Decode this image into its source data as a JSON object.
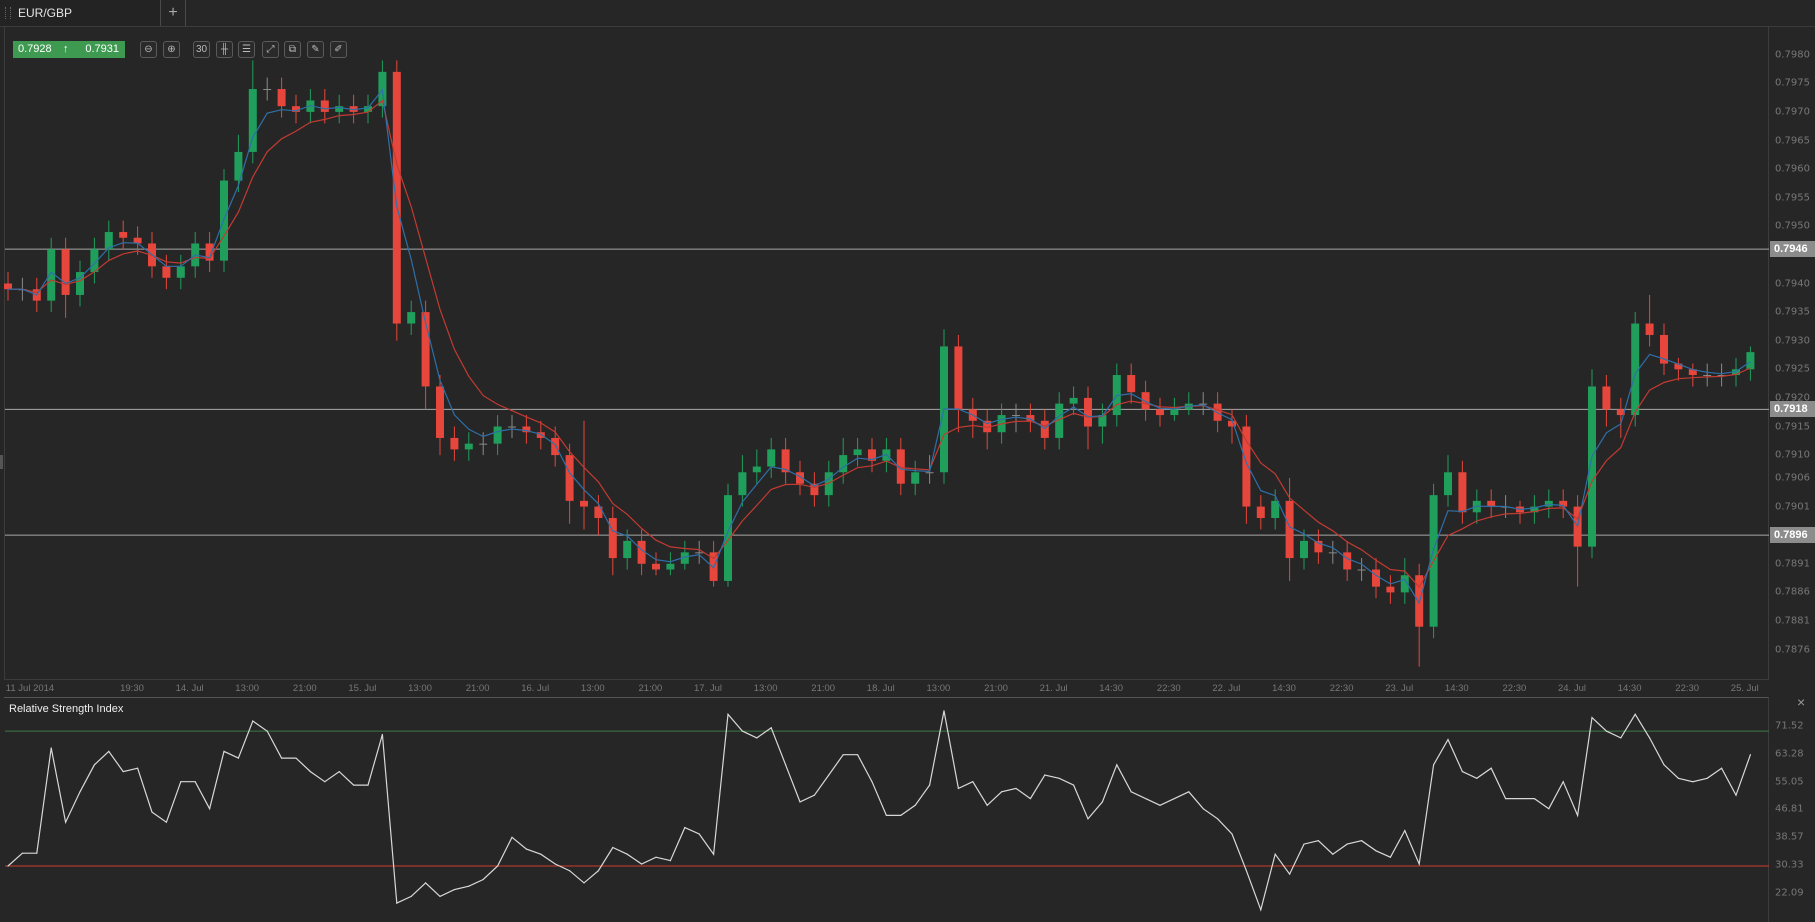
{
  "tab": {
    "label": "EUR/GBP",
    "add_label": "+"
  },
  "quote": {
    "bid": "0.7928",
    "ask": "0.7931",
    "direction_icon": "arrow-up-icon",
    "color": "#3f9a51"
  },
  "toolbar": [
    {
      "icon": "zoom-out-icon",
      "glyph": "⊖"
    },
    {
      "icon": "zoom-in-icon",
      "glyph": "⊕"
    },
    {
      "icon": "timeframe-icon",
      "glyph": "30"
    },
    {
      "icon": "chart-type-candles-icon",
      "glyph": "╫"
    },
    {
      "icon": "indicators-icon",
      "glyph": "☰"
    },
    {
      "icon": "autoscale-icon",
      "glyph": "⤢"
    },
    {
      "icon": "duplicate-icon",
      "glyph": "⧉"
    },
    {
      "icon": "edit-icon",
      "glyph": "✎"
    },
    {
      "icon": "draw-icon",
      "glyph": "✐"
    }
  ],
  "chart_data": [
    {
      "type": "candlestick",
      "symbol": "EUR/GBP",
      "ylim": [
        0.7871,
        0.7984
      ],
      "colors": {
        "up": "#1f9e5c",
        "down": "#e6463b",
        "neutral": "#8a8a8a",
        "ma_fast": "#2f6fa8",
        "ma_slow": "#c23b32"
      },
      "y_ticks": [
        "0.7980",
        "0.7975",
        "0.7970",
        "0.7965",
        "0.7960",
        "0.7955",
        "0.7950",
        "0.7940",
        "0.7935",
        "0.7930",
        "0.7925",
        "0.7920",
        "0.7915",
        "0.7910",
        "0.7906",
        "0.7901",
        "0.7891",
        "0.7886",
        "0.7881",
        "0.7876"
      ],
      "x_ticks": [
        "11 Jul 2014",
        "19:30",
        "14. Jul",
        "13:00",
        "21:00",
        "15. Jul",
        "13:00",
        "21:00",
        "16. Jul",
        "13:00",
        "21:00",
        "17. Jul",
        "13:00",
        "21:00",
        "18. Jul",
        "13:00",
        "21:00",
        "21. Jul",
        "14:30",
        "22:30",
        "22. Jul",
        "14:30",
        "22:30",
        "23. Jul",
        "14:30",
        "22:30",
        "24. Jul",
        "14:30",
        "22:30",
        "25. Jul"
      ],
      "horizontal_lines": [
        {
          "value": 0.7946,
          "label": "0.7946"
        },
        {
          "value": 0.7918,
          "label": "0.7918"
        },
        {
          "value": 0.7896,
          "label": "0.7896"
        }
      ],
      "candles_ohlc": [
        [
          0.794,
          0.7942,
          0.7937,
          0.7939
        ],
        [
          0.7939,
          0.7941,
          0.7937,
          0.7939
        ],
        [
          0.7939,
          0.7941,
          0.7935,
          0.7937
        ],
        [
          0.7937,
          0.7948,
          0.7935,
          0.7946
        ],
        [
          0.7946,
          0.7948,
          0.7934,
          0.7938
        ],
        [
          0.7938,
          0.7944,
          0.7936,
          0.7942
        ],
        [
          0.7942,
          0.7948,
          0.794,
          0.7946
        ],
        [
          0.7946,
          0.7951,
          0.7944,
          0.7949
        ],
        [
          0.7949,
          0.7951,
          0.7946,
          0.7948
        ],
        [
          0.7948,
          0.795,
          0.7945,
          0.7947
        ],
        [
          0.7947,
          0.7949,
          0.7941,
          0.7943
        ],
        [
          0.7943,
          0.7945,
          0.7939,
          0.7941
        ],
        [
          0.7941,
          0.7945,
          0.7939,
          0.7943
        ],
        [
          0.7943,
          0.7949,
          0.7941,
          0.7947
        ],
        [
          0.7947,
          0.7949,
          0.7942,
          0.7944
        ],
        [
          0.7944,
          0.796,
          0.7942,
          0.7958
        ],
        [
          0.7958,
          0.7966,
          0.7956,
          0.7963
        ],
        [
          0.7963,
          0.7979,
          0.7961,
          0.7974
        ],
        [
          0.7974,
          0.7976,
          0.7972,
          0.7974
        ],
        [
          0.7974,
          0.7976,
          0.7969,
          0.7971
        ],
        [
          0.7971,
          0.7973,
          0.7968,
          0.797
        ],
        [
          0.797,
          0.7974,
          0.7968,
          0.7972
        ],
        [
          0.7972,
          0.7974,
          0.7968,
          0.797
        ],
        [
          0.797,
          0.7973,
          0.7968,
          0.7971
        ],
        [
          0.7971,
          0.7973,
          0.7968,
          0.797
        ],
        [
          0.797,
          0.7973,
          0.7968,
          0.7971
        ],
        [
          0.7971,
          0.7979,
          0.7969,
          0.7977
        ],
        [
          0.7977,
          0.7979,
          0.793,
          0.7933
        ],
        [
          0.7933,
          0.7937,
          0.7931,
          0.7935
        ],
        [
          0.7935,
          0.7937,
          0.7918,
          0.7922
        ],
        [
          0.7922,
          0.7924,
          0.791,
          0.7913
        ],
        [
          0.7913,
          0.7915,
          0.7909,
          0.7911
        ],
        [
          0.7911,
          0.7914,
          0.7909,
          0.7912
        ],
        [
          0.7912,
          0.7914,
          0.791,
          0.7912
        ],
        [
          0.7912,
          0.7917,
          0.791,
          0.7915
        ],
        [
          0.7915,
          0.7917,
          0.7913,
          0.7915
        ],
        [
          0.7915,
          0.7917,
          0.7912,
          0.7914
        ],
        [
          0.7914,
          0.7916,
          0.7911,
          0.7913
        ],
        [
          0.7913,
          0.7915,
          0.7908,
          0.791
        ],
        [
          0.791,
          0.7912,
          0.7898,
          0.7902
        ],
        [
          0.7902,
          0.7916,
          0.7897,
          0.7901
        ],
        [
          0.7901,
          0.7903,
          0.7896,
          0.7899
        ],
        [
          0.7899,
          0.7901,
          0.7889,
          0.7892
        ],
        [
          0.7892,
          0.7897,
          0.789,
          0.7895
        ],
        [
          0.7895,
          0.7897,
          0.7889,
          0.7891
        ],
        [
          0.7891,
          0.7893,
          0.7889,
          0.789
        ],
        [
          0.789,
          0.7893,
          0.7889,
          0.7891
        ],
        [
          0.7891,
          0.7895,
          0.789,
          0.7893
        ],
        [
          0.7893,
          0.7895,
          0.7891,
          0.7893
        ],
        [
          0.7893,
          0.7895,
          0.7887,
          0.7888
        ],
        [
          0.7888,
          0.7905,
          0.7887,
          0.7903
        ],
        [
          0.7903,
          0.791,
          0.7901,
          0.7907
        ],
        [
          0.7907,
          0.7911,
          0.7905,
          0.7908
        ],
        [
          0.7908,
          0.7913,
          0.7906,
          0.7911
        ],
        [
          0.7911,
          0.7913,
          0.7905,
          0.7907
        ],
        [
          0.7907,
          0.7909,
          0.7903,
          0.7905
        ],
        [
          0.7905,
          0.7907,
          0.7901,
          0.7903
        ],
        [
          0.7903,
          0.7909,
          0.7901,
          0.7907
        ],
        [
          0.7907,
          0.7913,
          0.7905,
          0.791
        ],
        [
          0.791,
          0.7913,
          0.7908,
          0.7911
        ],
        [
          0.7911,
          0.7913,
          0.7907,
          0.7909
        ],
        [
          0.7909,
          0.7913,
          0.7907,
          0.7911
        ],
        [
          0.7911,
          0.7913,
          0.7903,
          0.7905
        ],
        [
          0.7905,
          0.7909,
          0.7903,
          0.7907
        ],
        [
          0.7907,
          0.791,
          0.7905,
          0.7907
        ],
        [
          0.7907,
          0.7932,
          0.7905,
          0.7929
        ],
        [
          0.7929,
          0.7931,
          0.7914,
          0.7918
        ],
        [
          0.7918,
          0.792,
          0.7913,
          0.7916
        ],
        [
          0.7916,
          0.7918,
          0.7911,
          0.7914
        ],
        [
          0.7914,
          0.7919,
          0.7912,
          0.7917
        ],
        [
          0.7917,
          0.7919,
          0.7914,
          0.7917
        ],
        [
          0.7917,
          0.7919,
          0.7914,
          0.7916
        ],
        [
          0.7916,
          0.7918,
          0.7911,
          0.7913
        ],
        [
          0.7913,
          0.7921,
          0.7911,
          0.7919
        ],
        [
          0.7919,
          0.7922,
          0.7917,
          0.792
        ],
        [
          0.792,
          0.7922,
          0.7911,
          0.7915
        ],
        [
          0.7915,
          0.7919,
          0.7912,
          0.7917
        ],
        [
          0.7917,
          0.7926,
          0.7915,
          0.7924
        ],
        [
          0.7924,
          0.7926,
          0.7919,
          0.7921
        ],
        [
          0.7921,
          0.7923,
          0.7916,
          0.7918
        ],
        [
          0.7918,
          0.792,
          0.7915,
          0.7917
        ],
        [
          0.7917,
          0.792,
          0.7916,
          0.7918
        ],
        [
          0.7918,
          0.7921,
          0.7917,
          0.7919
        ],
        [
          0.7919,
          0.7921,
          0.7917,
          0.7919
        ],
        [
          0.7919,
          0.7921,
          0.7914,
          0.7916
        ],
        [
          0.7916,
          0.7918,
          0.7912,
          0.7915
        ],
        [
          0.7915,
          0.7917,
          0.7898,
          0.7901
        ],
        [
          0.7901,
          0.7903,
          0.7897,
          0.7899
        ],
        [
          0.7899,
          0.7904,
          0.7897,
          0.7902
        ],
        [
          0.7902,
          0.7906,
          0.7888,
          0.7892
        ],
        [
          0.7892,
          0.7897,
          0.789,
          0.7895
        ],
        [
          0.7895,
          0.7897,
          0.7891,
          0.7893
        ],
        [
          0.7893,
          0.7895,
          0.7891,
          0.7893
        ],
        [
          0.7893,
          0.7895,
          0.7888,
          0.789
        ],
        [
          0.789,
          0.7892,
          0.7888,
          0.789
        ],
        [
          0.789,
          0.7892,
          0.7885,
          0.7887
        ],
        [
          0.7887,
          0.7889,
          0.7884,
          0.7886
        ],
        [
          0.7886,
          0.7892,
          0.7884,
          0.7889
        ],
        [
          0.7889,
          0.7891,
          0.7873,
          0.788
        ],
        [
          0.788,
          0.7905,
          0.7878,
          0.7903
        ],
        [
          0.7903,
          0.791,
          0.7901,
          0.7907
        ],
        [
          0.7907,
          0.7909,
          0.7898,
          0.79
        ],
        [
          0.79,
          0.7904,
          0.7898,
          0.7902
        ],
        [
          0.7902,
          0.7904,
          0.7899,
          0.7901
        ],
        [
          0.7901,
          0.7903,
          0.7899,
          0.7901
        ],
        [
          0.7901,
          0.7902,
          0.7898,
          0.79
        ],
        [
          0.79,
          0.7903,
          0.7898,
          0.7901
        ],
        [
          0.7901,
          0.7904,
          0.7899,
          0.7902
        ],
        [
          0.7902,
          0.7904,
          0.7899,
          0.7901
        ],
        [
          0.7901,
          0.7903,
          0.7887,
          0.7894
        ],
        [
          0.7894,
          0.7925,
          0.7892,
          0.7922
        ],
        [
          0.7922,
          0.7924,
          0.7915,
          0.7918
        ],
        [
          0.7918,
          0.792,
          0.7913,
          0.7917
        ],
        [
          0.7917,
          0.7935,
          0.7915,
          0.7933
        ],
        [
          0.7933,
          0.7938,
          0.7929,
          0.7931
        ],
        [
          0.7931,
          0.7933,
          0.7924,
          0.7926
        ],
        [
          0.7926,
          0.7927,
          0.7923,
          0.7925
        ],
        [
          0.7925,
          0.7926,
          0.7922,
          0.7924
        ],
        [
          0.7924,
          0.7926,
          0.7922,
          0.7924
        ],
        [
          0.7924,
          0.7926,
          0.7922,
          0.7924
        ],
        [
          0.7924,
          0.7927,
          0.7922,
          0.7925
        ],
        [
          0.7925,
          0.7929,
          0.7923,
          0.7928
        ]
      ]
    },
    {
      "type": "line",
      "title": "Relative Strength Index",
      "ylim": [
        17,
        78
      ],
      "y_ticks": [
        "71.52",
        "63.28",
        "55.05",
        "46.81",
        "38.57",
        "30.33",
        "22.09"
      ],
      "levels": [
        {
          "value": 70,
          "color": "#3a7a45"
        },
        {
          "value": 30,
          "color": "#d0392e"
        }
      ],
      "line_color": "#d8d8d8",
      "values": [
        30,
        33.8,
        33.8,
        65,
        43,
        52,
        60,
        64,
        58,
        59,
        46,
        43,
        55,
        55,
        47,
        64,
        62,
        73,
        70,
        62,
        62,
        58,
        55,
        58,
        54,
        54,
        69,
        19,
        21,
        25,
        21,
        23,
        24,
        26,
        30,
        38.5,
        35,
        33.5,
        30.6,
        28.6,
        25,
        28.6,
        35.5,
        33.5,
        30.6,
        32.6,
        31.6,
        41.4,
        39.5,
        33.5,
        75,
        70,
        68,
        71,
        60,
        49,
        51,
        57,
        63,
        63,
        55,
        45,
        45,
        48,
        54,
        76,
        53,
        55,
        48,
        52,
        53,
        50,
        57,
        56,
        54,
        44,
        49,
        60,
        52,
        50,
        48,
        50,
        52,
        47,
        44,
        39.5,
        28.6,
        17,
        33.5,
        27.6,
        36.5,
        37.5,
        33.5,
        36.5,
        37.5,
        34.5,
        32.6,
        40.5,
        30.6,
        60,
        67.5,
        58,
        56,
        59,
        50,
        50,
        50,
        47,
        55,
        45,
        74,
        70,
        68,
        75,
        68,
        60,
        56,
        55,
        56,
        59,
        51,
        63
      ]
    }
  ],
  "rsi_panel": {
    "close_label": "×"
  }
}
